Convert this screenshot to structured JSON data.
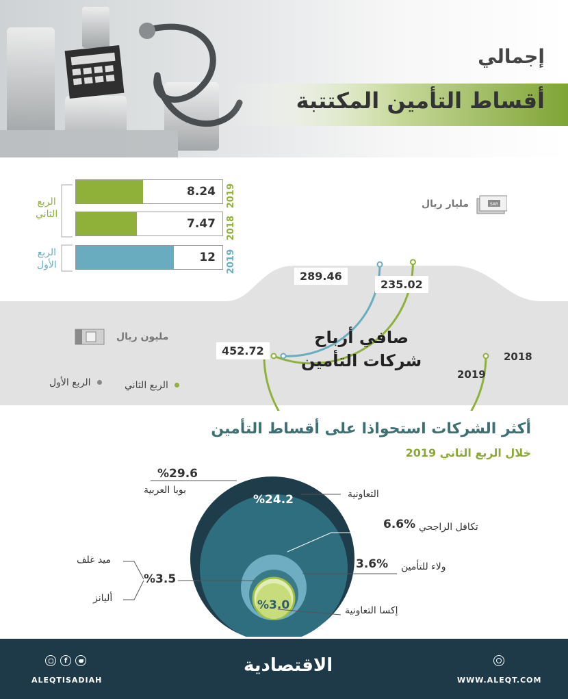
{
  "header": {
    "subtitle": "إجمالي",
    "title": "أقساط  التأمين المكتتبة"
  },
  "premiums": {
    "unit": "مليار ريال",
    "unit_icon": "banknote-icon",
    "q2_label_line1": "الربع",
    "q2_label_line2": "الثاني",
    "q1_label_line1": "الربع",
    "q1_label_line2": "الأول",
    "bars": [
      {
        "year": "2019",
        "quarter": "q2",
        "value": 8.24,
        "label": "8.24",
        "color": "#8fb13a"
      },
      {
        "year": "2018",
        "quarter": "q2",
        "value": 7.47,
        "label": "7.47",
        "color": "#8fb13a"
      },
      {
        "year": "2019",
        "quarter": "q1",
        "value": 12,
        "label": "12",
        "color": "#6aacbf"
      }
    ],
    "scale_max": 18
  },
  "profits": {
    "unit": "مليون ريال",
    "unit_icon": "banknote-stack-icon",
    "title_line1": "صافي أرباح",
    "title_line2": "شركات التأمين",
    "values": [
      {
        "series": "q2",
        "year": "2019",
        "value": 452.72,
        "label": "452.72",
        "color": "#8fb13a"
      },
      {
        "series": "q2",
        "year": "2018",
        "value": 289.46,
        "label": "289.46",
        "color": "#8fb13a"
      },
      {
        "series": "q1",
        "year": "2019",
        "value": 235.02,
        "label": "235.02",
        "color": "#6aacbf"
      }
    ],
    "year_2018": "2018",
    "year_2019": "2019",
    "legend_q2": "الربع الثاني",
    "legend_q1": "الربع الأول",
    "legend_q2_color": "#8fb13a",
    "legend_q1_color": "#888888"
  },
  "market_share": {
    "title": "أكثر الشركات استحواذا على أقساط التأمين",
    "subtitle": "خلال الربع الثاني 2019",
    "companies": [
      {
        "name": "بوبا العربية",
        "share": 29.6,
        "label": "%29.6",
        "color": "#1f3c4b"
      },
      {
        "name": "التعاونية",
        "share": 24.2,
        "label": "%24.2",
        "color": "#2f6e7e"
      },
      {
        "name": "تكافل الراجحي",
        "share": 6.6,
        "label": "6.6%",
        "color": "#6faec2"
      },
      {
        "name": "ولاء للتأمين",
        "share": 3.6,
        "label": "3.6%",
        "color": "#3a7a88"
      },
      {
        "name": "إكسا التعاونية",
        "share": 3.0,
        "label": "%3.0",
        "color": "#c9dc7c"
      }
    ],
    "shared_label": "%3.5",
    "shared_share": 3.5,
    "shared_names": [
      "ميد غلف",
      "أليانز"
    ]
  },
  "footer": {
    "handle": "ALEQTISADIAH",
    "logo": "الاقتصادية",
    "website": "WWW.ALEQT.COM",
    "icons": [
      "instagram-icon",
      "facebook-icon",
      "twitter-icon",
      "globe-icon"
    ]
  }
}
